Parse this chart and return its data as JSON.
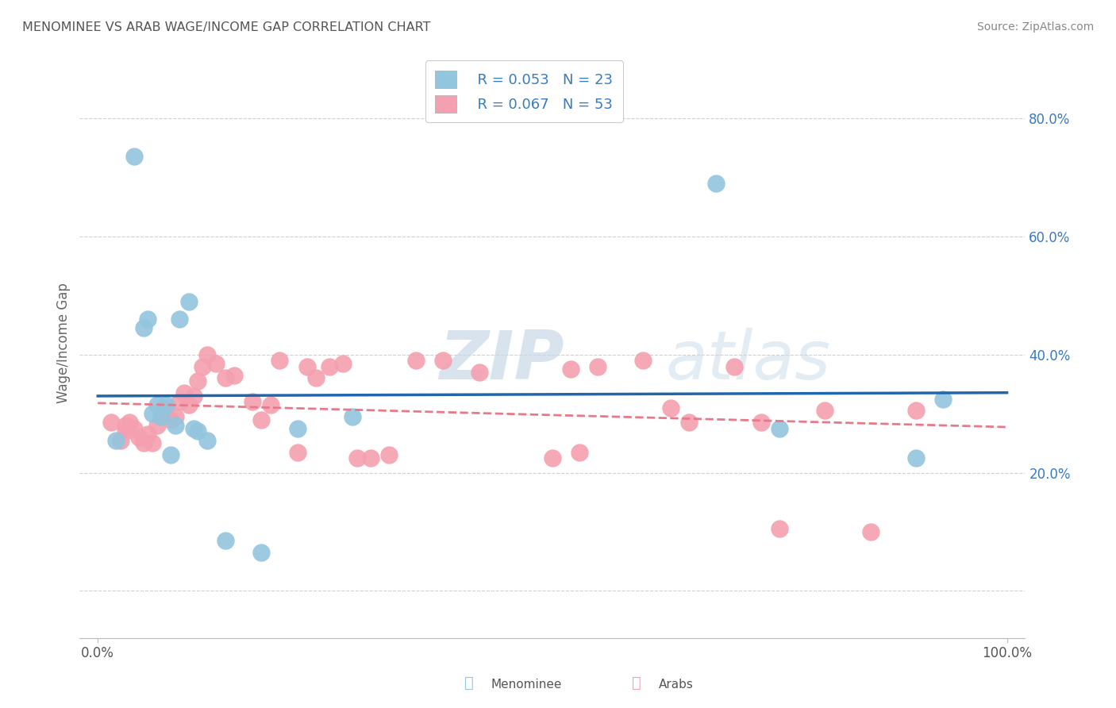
{
  "title": "MENOMINEE VS ARAB WAGE/INCOME GAP CORRELATION CHART",
  "source": "Source: ZipAtlas.com",
  "ylabel": "Wage/Income Gap",
  "xlim": [
    -0.02,
    1.02
  ],
  "ylim": [
    -0.08,
    0.92
  ],
  "yticks": [
    0.0,
    0.2,
    0.4,
    0.6,
    0.8
  ],
  "xticks": [
    0.0,
    1.0
  ],
  "xtick_labels": [
    "0.0%",
    "100.0%"
  ],
  "ytick_labels_right": [
    "",
    "20.0%",
    "40.0%",
    "60.0%",
    "80.0%"
  ],
  "menominee_R": "0.053",
  "menominee_N": "23",
  "arab_R": "0.067",
  "arab_N": "53",
  "menominee_color": "#92c5de",
  "arab_color": "#f4a0b0",
  "trend_menominee_color": "#2166ac",
  "trend_arab_color": "#e8788a",
  "watermark_zip": "ZIP",
  "watermark_atlas": "atlas",
  "menominee_points_x": [
    0.02,
    0.04,
    0.05,
    0.055,
    0.06,
    0.065,
    0.07,
    0.075,
    0.08,
    0.085,
    0.09,
    0.1,
    0.105,
    0.11,
    0.12,
    0.14,
    0.18,
    0.22,
    0.28,
    0.68,
    0.75,
    0.9,
    0.93
  ],
  "menominee_points_y": [
    0.255,
    0.735,
    0.445,
    0.46,
    0.3,
    0.315,
    0.295,
    0.315,
    0.23,
    0.28,
    0.46,
    0.49,
    0.275,
    0.27,
    0.255,
    0.085,
    0.065,
    0.275,
    0.295,
    0.69,
    0.275,
    0.225,
    0.325
  ],
  "arab_points_x": [
    0.015,
    0.025,
    0.03,
    0.03,
    0.035,
    0.04,
    0.045,
    0.05,
    0.055,
    0.06,
    0.065,
    0.07,
    0.075,
    0.08,
    0.085,
    0.09,
    0.095,
    0.1,
    0.105,
    0.11,
    0.115,
    0.12,
    0.13,
    0.14,
    0.15,
    0.17,
    0.18,
    0.19,
    0.2,
    0.22,
    0.23,
    0.24,
    0.255,
    0.27,
    0.285,
    0.3,
    0.32,
    0.35,
    0.38,
    0.42,
    0.5,
    0.52,
    0.53,
    0.55,
    0.6,
    0.63,
    0.65,
    0.7,
    0.73,
    0.75,
    0.8,
    0.85,
    0.9
  ],
  "arab_points_y": [
    0.285,
    0.255,
    0.27,
    0.28,
    0.285,
    0.275,
    0.26,
    0.25,
    0.265,
    0.25,
    0.28,
    0.295,
    0.31,
    0.29,
    0.295,
    0.32,
    0.335,
    0.315,
    0.33,
    0.355,
    0.38,
    0.4,
    0.385,
    0.36,
    0.365,
    0.32,
    0.29,
    0.315,
    0.39,
    0.235,
    0.38,
    0.36,
    0.38,
    0.385,
    0.225,
    0.225,
    0.23,
    0.39,
    0.39,
    0.37,
    0.225,
    0.375,
    0.235,
    0.38,
    0.39,
    0.31,
    0.285,
    0.38,
    0.285,
    0.105,
    0.305,
    0.1,
    0.305
  ],
  "background_color": "#ffffff",
  "grid_color": "#d0d0d0",
  "title_color": "#555555",
  "source_color": "#888888",
  "legend_label_color": "#3a7abf"
}
